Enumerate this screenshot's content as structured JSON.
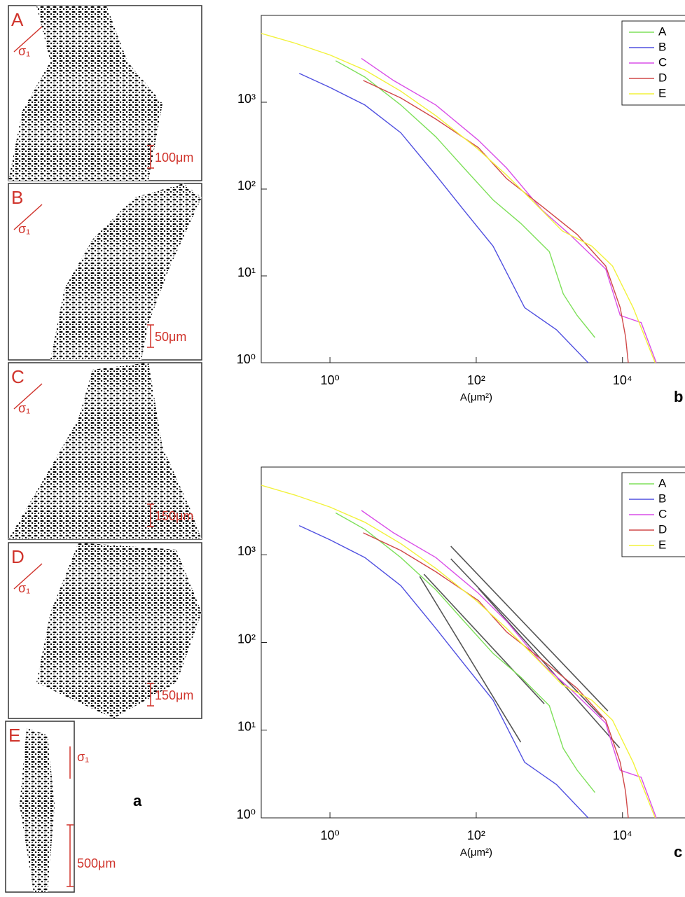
{
  "chart_data": [
    {
      "type": "line",
      "panel_label": "b",
      "x_label": "A(μm²)",
      "xscale": "log",
      "yscale": "log",
      "legend": "upper right",
      "xlim": [
        0.115,
        70000
      ],
      "ylim": [
        1,
        10000
      ],
      "xticks": [
        {
          "value": 1,
          "label": "10⁰"
        },
        {
          "value": 100,
          "label": "10²"
        },
        {
          "value": 10000,
          "label": "10⁴"
        }
      ],
      "yticks": [
        {
          "value": 1,
          "label": "10⁰"
        },
        {
          "value": 10,
          "label": "10¹"
        },
        {
          "value": 100,
          "label": "10²"
        },
        {
          "value": 1000,
          "label": "10³"
        }
      ],
      "series": [
        {
          "name": "A",
          "color": "#7ee05a",
          "x": [
            1.2,
            3,
            9.3,
            28,
            68,
            170,
            410,
            1000,
            1550,
            2400,
            4200
          ],
          "values": [
            3000,
            1950,
            930,
            400,
            175,
            75,
            40,
            19,
            6.2,
            3.5,
            1.95
          ]
        },
        {
          "name": "B",
          "color": "#5050e0",
          "x": [
            0.38,
            1,
            3,
            9.3,
            28,
            68,
            170,
            260,
            460,
            1250,
            3400
          ],
          "values": [
            2150,
            1480,
            930,
            445,
            145,
            57,
            22,
            11,
            4.3,
            2.4,
            1
          ]
        },
        {
          "name": "C",
          "color": "#d94ee8",
          "x": [
            2.7,
            7.4,
            28,
            107,
            260,
            800,
            1900,
            5900,
            9300,
            18000,
            29000
          ],
          "values": [
            3200,
            1780,
            930,
            365,
            175,
            57,
            30,
            12,
            3.5,
            2.9,
            1
          ]
        },
        {
          "name": "D",
          "color": "#d04848",
          "x": [
            2.85,
            9.3,
            28,
            107,
            260,
            800,
            2400,
            5900,
            9300,
            11000,
            12000
          ],
          "values": [
            1780,
            1120,
            640,
            300,
            132,
            63,
            30,
            13,
            4.3,
            2,
            1
          ]
        },
        {
          "name": "E",
          "color": "#f2f23a",
          "x": [
            0.115,
            0.33,
            1,
            3,
            9.3,
            28,
            100,
            260,
            630,
            1500,
            3800,
            7300,
            14000,
            28000
          ],
          "values": [
            6200,
            4800,
            3500,
            2350,
            1340,
            700,
            300,
            145,
            69,
            33,
            22,
            13,
            4.3,
            1
          ]
        }
      ]
    },
    {
      "type": "line",
      "panel_label": "c",
      "x_label": "A(μm²)",
      "xscale": "log",
      "yscale": "log",
      "legend": "upper right",
      "xlim": [
        0.115,
        70000
      ],
      "ylim": [
        1,
        10000
      ],
      "xticks": [
        {
          "value": 1,
          "label": "10⁰"
        },
        {
          "value": 100,
          "label": "10²"
        },
        {
          "value": 10000,
          "label": "10⁴"
        }
      ],
      "yticks": [
        {
          "value": 1,
          "label": "10⁰"
        },
        {
          "value": 10,
          "label": "10¹"
        },
        {
          "value": 100,
          "label": "10²"
        },
        {
          "value": 1000,
          "label": "10³"
        }
      ],
      "series": [
        {
          "name": "A",
          "color": "#7ee05a",
          "x": [
            1.2,
            3,
            9.3,
            28,
            68,
            170,
            410,
            1000,
            1550,
            2400,
            4200
          ],
          "values": [
            3000,
            1950,
            930,
            400,
            175,
            75,
            40,
            19,
            6.2,
            3.5,
            1.95
          ]
        },
        {
          "name": "B",
          "color": "#5050e0",
          "x": [
            0.38,
            1,
            3,
            9.3,
            28,
            68,
            170,
            260,
            460,
            1250,
            3400
          ],
          "values": [
            2150,
            1480,
            930,
            445,
            145,
            57,
            22,
            11,
            4.3,
            2.4,
            1
          ]
        },
        {
          "name": "C",
          "color": "#d94ee8",
          "x": [
            2.7,
            7.4,
            28,
            107,
            260,
            800,
            1900,
            5900,
            9300,
            18000,
            29000
          ],
          "values": [
            3200,
            1780,
            930,
            365,
            175,
            57,
            30,
            12,
            3.5,
            2.9,
            1
          ]
        },
        {
          "name": "D",
          "color": "#d04848",
          "x": [
            2.85,
            9.3,
            28,
            107,
            260,
            800,
            2400,
            5900,
            9300,
            11000,
            12000
          ],
          "values": [
            1780,
            1120,
            640,
            300,
            132,
            63,
            30,
            13,
            4.3,
            2,
            1
          ]
        },
        {
          "name": "E",
          "color": "#f2f23a",
          "x": [
            0.115,
            0.33,
            1,
            3,
            9.3,
            28,
            100,
            260,
            630,
            1500,
            3800,
            7300,
            14000,
            28000
          ],
          "values": [
            6200,
            4800,
            3500,
            2350,
            1340,
            700,
            300,
            145,
            69,
            33,
            22,
            13,
            4.3,
            1
          ]
        }
      ],
      "fits": [
        {
          "color": "#555555",
          "x": [
            16.9,
            406
          ],
          "values": [
            565,
            7.3
          ]
        },
        {
          "color": "#555555",
          "x": [
            19.3,
            850
          ],
          "values": [
            600,
            20
          ]
        },
        {
          "color": "#555555",
          "x": [
            45,
            6300
          ],
          "values": [
            1250,
            16.6
          ]
        },
        {
          "color": "#555555",
          "x": [
            45,
            5200
          ],
          "values": [
            900,
            14
          ]
        },
        {
          "color": "#555555",
          "x": [
            107,
            9100
          ],
          "values": [
            415,
            6.3
          ]
        }
      ]
    }
  ],
  "images": [
    {
      "label": "A",
      "stress": "σ₁",
      "scale": "100μm"
    },
    {
      "label": "B",
      "stress": "σ₁",
      "scale": "50μm"
    },
    {
      "label": "C",
      "stress": "σ₁",
      "scale": "150μm"
    },
    {
      "label": "D",
      "stress": "σ₁",
      "scale": "150μm"
    },
    {
      "label": "E",
      "stress": "σ₁",
      "scale": "500μm"
    }
  ],
  "images_label": "a"
}
